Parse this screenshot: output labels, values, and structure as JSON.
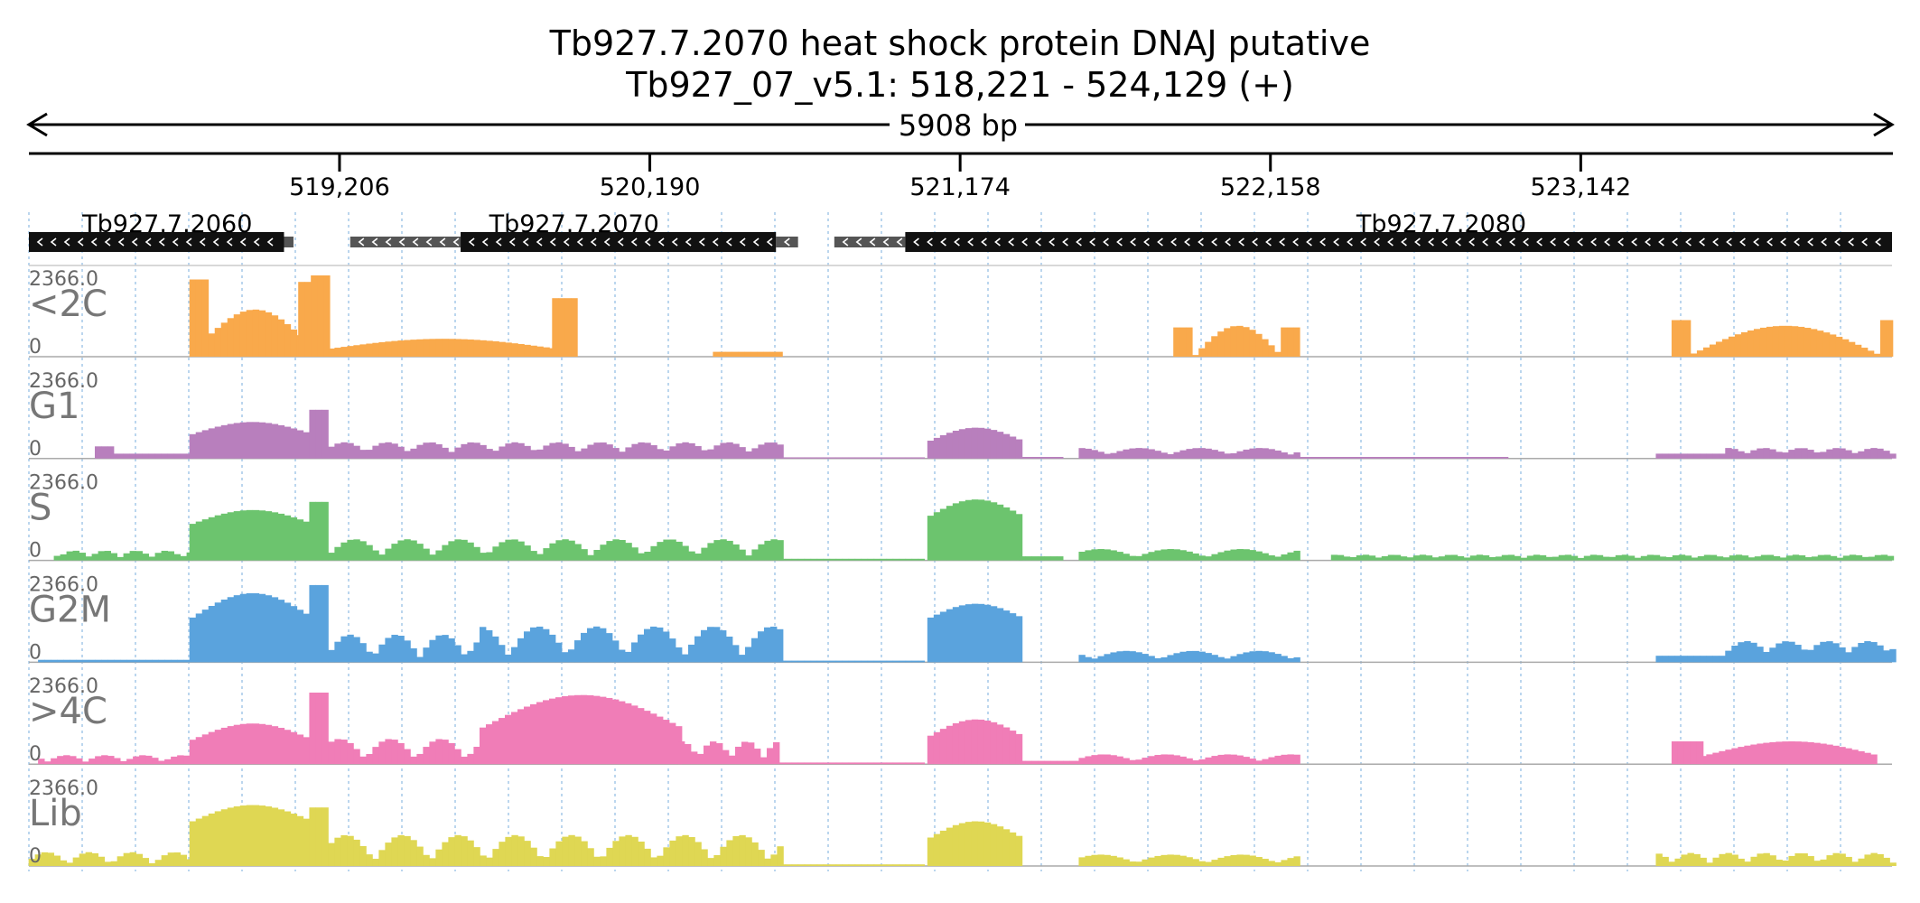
{
  "header": {
    "title": "Tb927.7.2070  heat shock protein DNAJ  putative",
    "subtitle": "Tb927_07_v5.1: 518,221 - 524,129 (+)"
  },
  "region": {
    "start": 518221,
    "end": 524129,
    "span_label": "5908 bp"
  },
  "axis": {
    "ticks": [
      {
        "pos": 519206,
        "label": "519,206"
      },
      {
        "pos": 520190,
        "label": "520,190"
      },
      {
        "pos": 521174,
        "label": "521,174"
      },
      {
        "pos": 522158,
        "label": "522,158"
      },
      {
        "pos": 523142,
        "label": "523,142"
      }
    ]
  },
  "genes": [
    {
      "name": "Tb927.7.2060",
      "strand": "-",
      "cds": [
        518221,
        519030
      ],
      "utr": [
        [
          519030,
          519060
        ]
      ],
      "label_pos": 518660
    },
    {
      "name": "Tb927.7.2070",
      "strand": "-",
      "cds": [
        518765,
        519850
      ],
      "cds_main": [
        519590,
        520590
      ],
      "utr": [
        [
          519240,
          519590
        ],
        [
          520590,
          520660
        ]
      ],
      "label_pos": 519950
    },
    {
      "name": "Tb927.7.2080",
      "strand": "-",
      "cds_main": [
        521000,
        524129
      ],
      "utr": [
        [
          520775,
          521000
        ]
      ],
      "label_pos": 522700
    }
  ],
  "colors": {
    "<2C": "#f9a94b",
    "G1": "#b87fbd",
    "S": "#6cc46e",
    "G2M": "#5aa3dd",
    ">4C": "#f07db7",
    "Lib": "#dfd753",
    "gene_body": "#111111",
    "utr": "#555555",
    "grid": "#9ec4e6"
  },
  "tracks": [
    {
      "name": "<2C",
      "max": "2366.0",
      "zero": "0"
    },
    {
      "name": "G1",
      "max": "2366.0",
      "zero": "0"
    },
    {
      "name": "S",
      "max": "2366.0",
      "zero": "0"
    },
    {
      "name": "G2M",
      "max": "2366.0",
      "zero": "0"
    },
    {
      "name": ">4C",
      "max": "2366.0",
      "zero": "0"
    },
    {
      "name": "Lib",
      "max": "2366.0",
      "zero": "0"
    }
  ]
}
